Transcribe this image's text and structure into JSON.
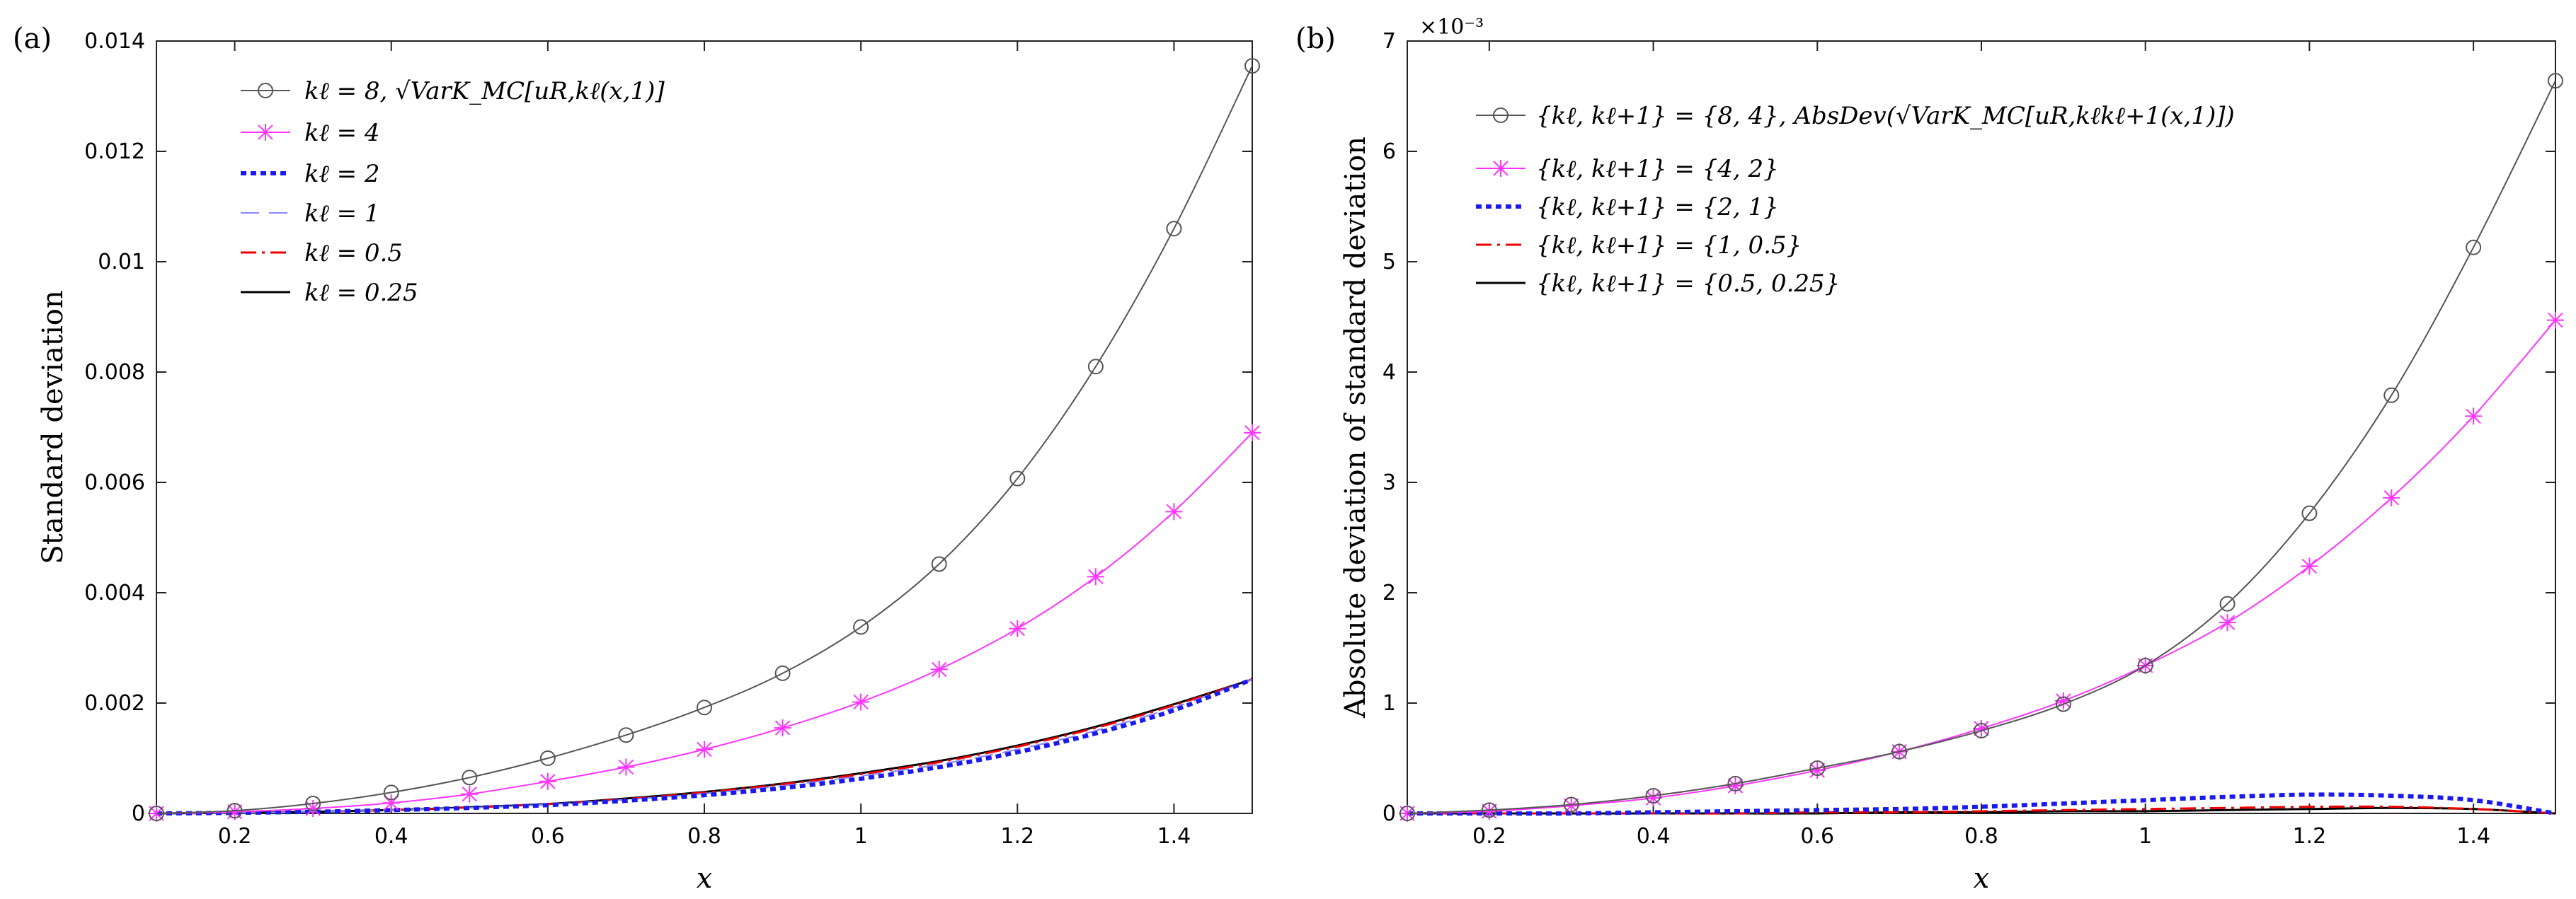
{
  "chart_data": [
    {
      "type": "line",
      "panel_label": "(a)",
      "xlabel": "x",
      "ylabel": "Standard deviation",
      "xlim": [
        0.1,
        1.5
      ],
      "ylim": [
        0,
        0.014
      ],
      "xticks": [
        0.2,
        0.4,
        0.6,
        0.8,
        1,
        1.2,
        1.4
      ],
      "xtick_labels": [
        "0.2",
        "0.4",
        "0.6",
        "0.8",
        "1",
        "1.2",
        "1.4"
      ],
      "yticks": [
        0,
        0.002,
        0.004,
        0.006,
        0.008,
        0.01,
        0.012,
        0.014
      ],
      "ytick_labels": [
        "0",
        "0.002",
        "0.004",
        "0.006",
        "0.008",
        "0.01",
        "0.012",
        "0.014"
      ],
      "exponent_label": "",
      "legend_position": "top-left",
      "x": [
        0.1,
        0.2,
        0.3,
        0.4,
        0.5,
        0.6,
        0.7,
        0.8,
        0.9,
        1.0,
        1.1,
        1.2,
        1.3,
        1.4,
        1.5
      ],
      "series": [
        {
          "name": "kℓ = 8,   √VarK_MC[uR,kℓ(x,1)]",
          "color": "#555555",
          "dash": "",
          "width": 2,
          "marker": "circle",
          "values": [
            0.0,
            5e-05,
            0.00018,
            0.00038,
            0.00065,
            0.001,
            0.00142,
            0.00192,
            0.00254,
            0.00338,
            0.00452,
            0.00607,
            0.0081,
            0.0106,
            0.01355
          ]
        },
        {
          "name": "kℓ = 4",
          "color": "#ff33ff",
          "dash": "",
          "width": 2,
          "marker": "star",
          "values": [
            0.0,
            3e-05,
            9e-05,
            0.00019,
            0.00035,
            0.00058,
            0.00084,
            0.00116,
            0.00155,
            0.00202,
            0.00261,
            0.00335,
            0.00429,
            0.00547,
            0.0069
          ]
        },
        {
          "name": "kℓ = 2",
          "color": "#1a1aee",
          "dash": "8,6",
          "width": 6,
          "marker": "none",
          "values": [
            0.0,
            1e-05,
            3e-05,
            6e-05,
            0.0001,
            0.00015,
            0.00023,
            0.00033,
            0.00046,
            0.00063,
            0.00084,
            0.00111,
            0.00145,
            0.00187,
            0.00243
          ]
        },
        {
          "name": "kℓ = 1",
          "color": "#8888ff",
          "dash": "26,14",
          "width": 2,
          "marker": "none",
          "values": [
            0.0,
            1e-05,
            3e-05,
            6e-05,
            0.0001,
            0.00016,
            0.00025,
            0.00036,
            0.0005,
            0.00068,
            0.00089,
            0.00116,
            0.0015,
            0.00192,
            0.00243
          ]
        },
        {
          "name": "kℓ = 0.5",
          "color": "#ee0000",
          "dash": "22,8,4,8",
          "width": 3,
          "marker": "none",
          "values": [
            0.0,
            1e-05,
            3e-05,
            6e-05,
            0.00011,
            0.00017,
            0.00026,
            0.00038,
            0.00053,
            0.00071,
            0.00093,
            0.00121,
            0.00155,
            0.00196,
            0.00243
          ]
        },
        {
          "name": "kℓ = 0.25",
          "color": "#000000",
          "dash": "",
          "width": 3,
          "marker": "none",
          "values": [
            0.0,
            1e-05,
            3e-05,
            6e-05,
            0.00011,
            0.00017,
            0.00027,
            0.00039,
            0.00054,
            0.00073,
            0.00095,
            0.00123,
            0.00157,
            0.00198,
            0.00243
          ]
        }
      ]
    },
    {
      "type": "line",
      "panel_label": "(b)",
      "xlabel": "x",
      "ylabel": "Absolute deviation of standard deviation",
      "xlim": [
        0.1,
        1.5
      ],
      "ylim": [
        0,
        7
      ],
      "xticks": [
        0.2,
        0.4,
        0.6,
        0.8,
        1,
        1.2,
        1.4
      ],
      "xtick_labels": [
        "0.2",
        "0.4",
        "0.6",
        "0.8",
        "1",
        "1.2",
        "1.4"
      ],
      "yticks": [
        0,
        1,
        2,
        3,
        4,
        5,
        6,
        7
      ],
      "ytick_labels": [
        "0",
        "1",
        "2",
        "3",
        "4",
        "5",
        "6",
        "7"
      ],
      "exponent_label": "×10⁻³",
      "legend_position": "top-left",
      "x": [
        0.1,
        0.2,
        0.3,
        0.4,
        0.5,
        0.6,
        0.7,
        0.8,
        0.9,
        1.0,
        1.1,
        1.2,
        1.3,
        1.4,
        1.5
      ],
      "series": [
        {
          "name": "{kℓ, kℓ+1} = {8, 4},  AbsDev(√VarK_MC[uR,kℓkℓ+1(x,1)])",
          "color": "#555555",
          "dash": "",
          "width": 2,
          "marker": "circle",
          "values": [
            0.0,
            0.03,
            0.08,
            0.16,
            0.27,
            0.41,
            0.56,
            0.75,
            0.99,
            1.34,
            1.9,
            2.72,
            3.79,
            5.13,
            6.64
          ]
        },
        {
          "name": "{kℓ, kℓ+1} = {4, 2}",
          "color": "#ff33ff",
          "dash": "",
          "width": 2,
          "marker": "star",
          "values": [
            0.0,
            0.02,
            0.07,
            0.14,
            0.25,
            0.39,
            0.56,
            0.77,
            1.02,
            1.34,
            1.73,
            2.24,
            2.86,
            3.6,
            4.47
          ]
        },
        {
          "name": "{kℓ, kℓ+1} = {2, 1}",
          "color": "#1a1aee",
          "dash": "8,6",
          "width": 6,
          "marker": "none",
          "values": [
            0.0,
            0.0,
            0.0,
            0.01,
            0.02,
            0.03,
            0.04,
            0.06,
            0.09,
            0.12,
            0.15,
            0.17,
            0.16,
            0.12,
            0.0
          ]
        },
        {
          "name": "{kℓ, kℓ+1} = {1, 0.5}",
          "color": "#ee0000",
          "dash": "22,8,4,8",
          "width": 3,
          "marker": "none",
          "values": [
            0.0,
            0.0,
            0.0,
            0.0,
            0.0,
            0.01,
            0.01,
            0.02,
            0.03,
            0.04,
            0.05,
            0.06,
            0.06,
            0.04,
            0.0
          ]
        },
        {
          "name": "{kℓ, kℓ+1} = {0.5, 0.25}",
          "color": "#000000",
          "dash": "",
          "width": 3,
          "marker": "none",
          "values": [
            0.0,
            0.0,
            0.0,
            0.0,
            0.0,
            0.0,
            0.01,
            0.01,
            0.02,
            0.02,
            0.03,
            0.04,
            0.05,
            0.04,
            0.0
          ]
        }
      ]
    }
  ]
}
